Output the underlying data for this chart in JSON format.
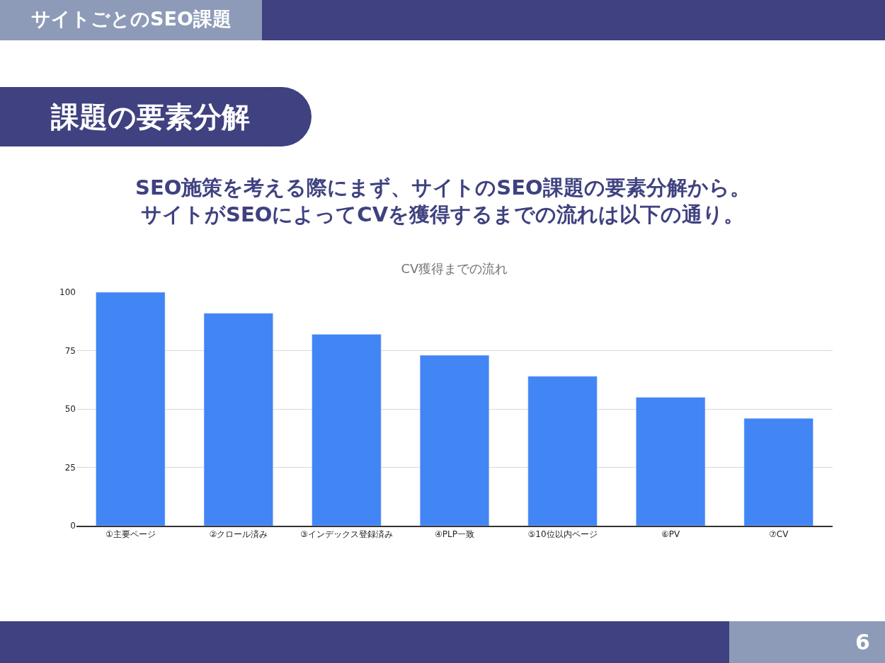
{
  "chart_data": {
    "type": "bar",
    "title": "CV獲得までの流れ",
    "subtitle": "SEO施策を考える際にまず、サイトのSEO課題の要素分解から。",
    "annotations": [
      "サイトごとのSEO課題",
      "課題の要素分解",
      "6",
      "サイトがSEOによってCVを獲得するまでの流れは以下の通り。"
    ],
    "categories": [
      "①主要ページ",
      "②クロール済み",
      "③インデックス登録済み",
      "④PLP一致",
      "⑤10位以内ページ",
      "⑥PV",
      "⑦CV"
    ],
    "values": [
      100,
      91,
      82,
      73,
      64,
      55,
      46
    ],
    "color": "#4285f4",
    "ylim": [
      0,
      100
    ],
    "yticks": [
      0,
      25,
      50,
      75,
      100
    ],
    "grid": "y",
    "legend": false
  }
}
